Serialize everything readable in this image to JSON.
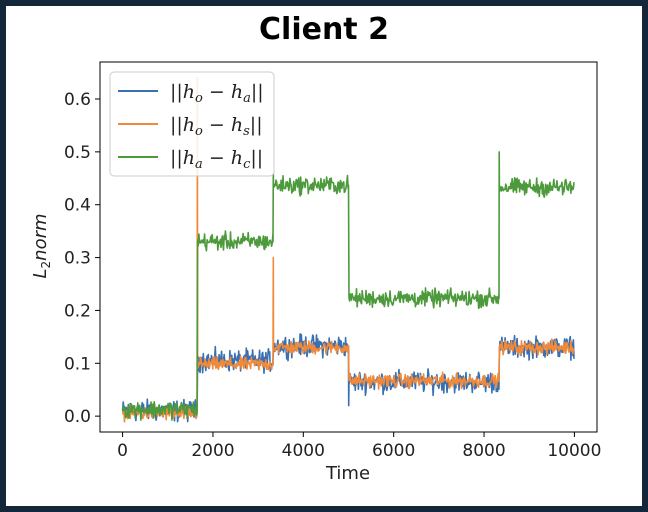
{
  "chart_data": {
    "type": "line",
    "title": "Client 2",
    "xlabel": "Time",
    "ylabel": "L2 norm",
    "ylabel_parts": {
      "base": "L",
      "sub": "2",
      "rest": "norm"
    },
    "xlim": [
      -500,
      10500
    ],
    "ylim": [
      -0.03,
      0.67
    ],
    "xticks": [
      0,
      2000,
      4000,
      6000,
      8000,
      10000
    ],
    "xtick_labels": [
      "0",
      "2000",
      "4000",
      "6000",
      "8000",
      "10000"
    ],
    "yticks": [
      0.0,
      0.1,
      0.2,
      0.3,
      0.4,
      0.5,
      0.6
    ],
    "ytick_labels": [
      "0.0",
      "0.1",
      "0.2",
      "0.3",
      "0.4",
      "0.5",
      "0.6"
    ],
    "legend_position": "top-left",
    "series": [
      {
        "name": "||h_o − h_a||",
        "legend_parts": [
          "||h",
          "o",
          " − h",
          "a",
          "||"
        ],
        "color": "#3a6fb0",
        "noise": 0.011,
        "x": [
          0,
          1650,
          1660,
          3330,
          3340,
          5000,
          5010,
          8330,
          8340,
          10000
        ],
        "y": [
          0.01,
          0.01,
          0.105,
          0.105,
          0.133,
          0.133,
          0.065,
          0.065,
          0.13,
          0.13
        ]
      },
      {
        "name": "||h_o − h_s||",
        "legend_parts": [
          "||h",
          "o",
          " − h",
          "s",
          "||"
        ],
        "color": "#f08a3a",
        "noise": 0.007,
        "x": [
          0,
          1650,
          1660,
          3330,
          3340,
          5000,
          5010,
          8330,
          8340,
          10000
        ],
        "y": [
          0.005,
          0.005,
          0.098,
          0.098,
          0.13,
          0.13,
          0.067,
          0.067,
          0.13,
          0.13
        ]
      },
      {
        "name": "||h_a − h_c||",
        "legend_parts": [
          "||h",
          "a",
          " − h",
          "c",
          "||"
        ],
        "color": "#4c9a3c",
        "noise": 0.009,
        "x": [
          0,
          1650,
          1660,
          3330,
          3340,
          5000,
          5010,
          8330,
          8340,
          10000
        ],
        "y": [
          0.013,
          0.013,
          0.33,
          0.33,
          0.437,
          0.437,
          0.223,
          0.223,
          0.433,
          0.433
        ]
      }
    ],
    "spikes": [
      {
        "series": 1,
        "x": 1655,
        "y": 0.64
      },
      {
        "series": 1,
        "x": 3335,
        "y": 0.3
      },
      {
        "series": 2,
        "x": 3335,
        "y": 0.46
      },
      {
        "series": 2,
        "x": 8335,
        "y": 0.5
      },
      {
        "series": 0,
        "x": 5005,
        "y": 0.02
      }
    ]
  }
}
